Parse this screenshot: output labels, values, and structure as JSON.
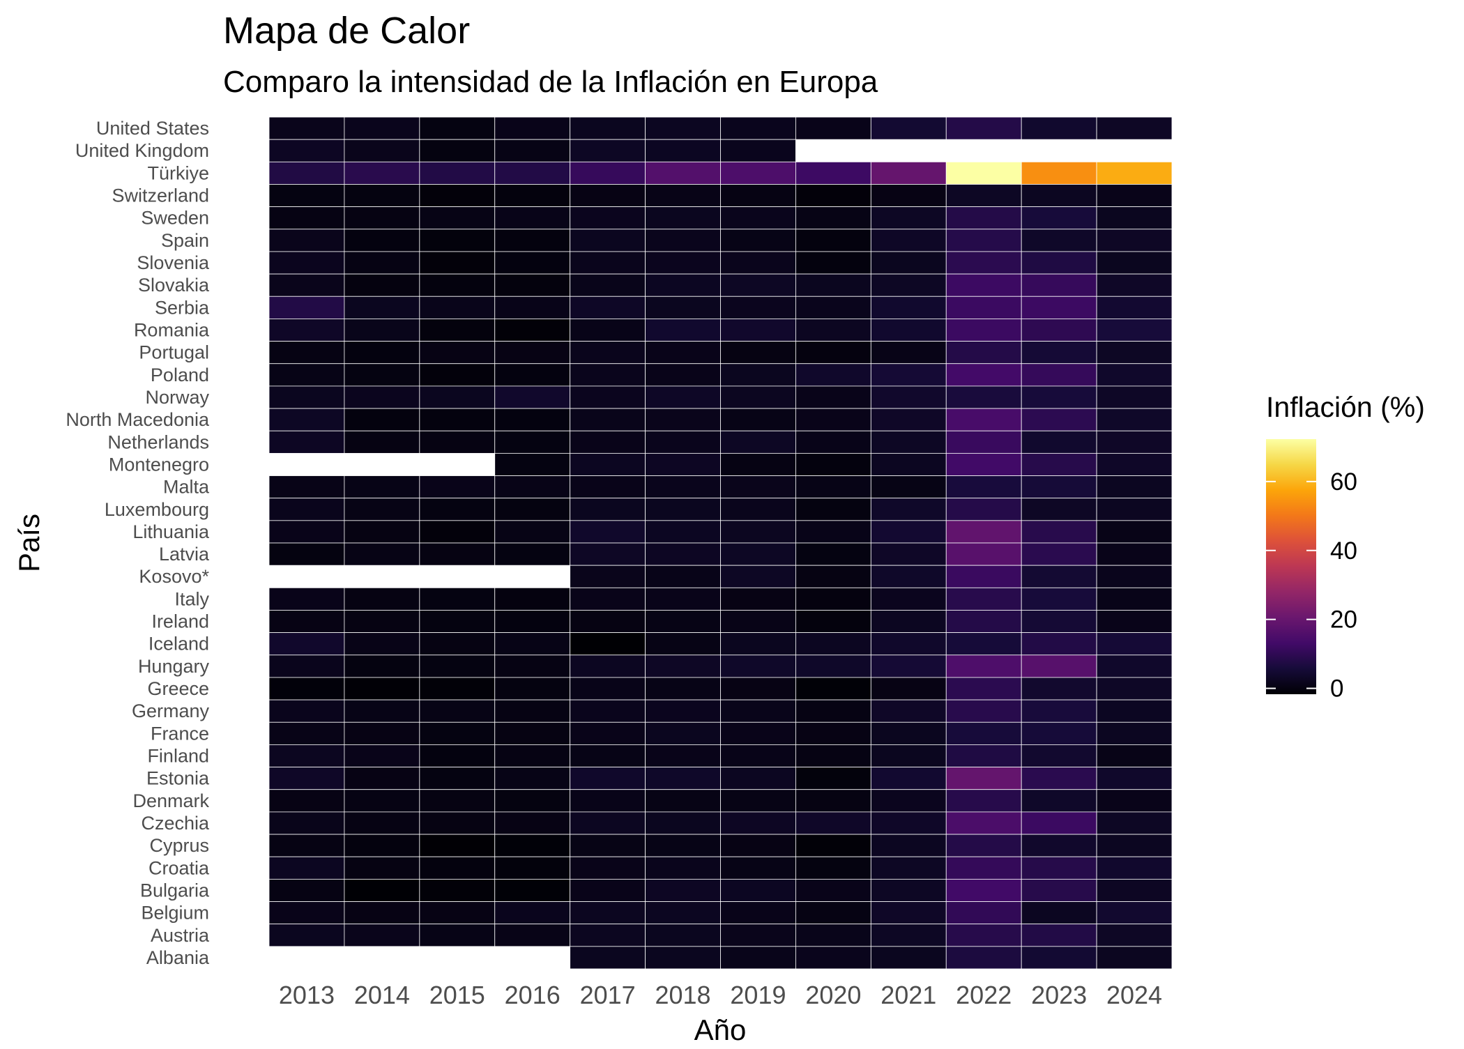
{
  "chart_data": {
    "type": "heatmap",
    "title": "Mapa de Calor",
    "subtitle": "Comparo la intensidad de la Inflación en Europa",
    "xlabel": "Año",
    "ylabel": "País",
    "legend": {
      "title": "Inflación (%)",
      "ticks": [
        0,
        20,
        40,
        60
      ],
      "placement": "right",
      "colormap": "inferno",
      "range": [
        -1.7,
        72.3
      ]
    },
    "x": [
      "2013",
      "2014",
      "2015",
      "2016",
      "2017",
      "2018",
      "2019",
      "2020",
      "2021",
      "2022",
      "2023",
      "2024"
    ],
    "y": [
      "United States",
      "United Kingdom",
      "Türkiye",
      "Switzerland",
      "Sweden",
      "Spain",
      "Slovenia",
      "Slovakia",
      "Serbia",
      "Romania",
      "Portugal",
      "Poland",
      "Norway",
      "North Macedonia",
      "Netherlands",
      "Montenegro",
      "Malta",
      "Luxembourg",
      "Lithuania",
      "Latvia",
      "Kosovo*",
      "Italy",
      "Ireland",
      "Iceland",
      "Hungary",
      "Greece",
      "Germany",
      "France",
      "Finland",
      "Estonia",
      "Denmark",
      "Czechia",
      "Cyprus",
      "Croatia",
      "Bulgaria",
      "Belgium",
      "Austria",
      "Albania"
    ],
    "values": [
      [
        1.5,
        1.6,
        0.1,
        1.3,
        2.1,
        2.4,
        1.8,
        1.2,
        4.7,
        8.0,
        4.1,
        2.9
      ],
      [
        2.6,
        1.5,
        0.0,
        0.7,
        2.7,
        2.5,
        1.8,
        null,
        null,
        null,
        null,
        null
      ],
      [
        7.5,
        8.9,
        7.7,
        7.8,
        11.1,
        16.3,
        15.2,
        12.3,
        19.6,
        72.3,
        53.9,
        58.5
      ],
      [
        0.1,
        0.0,
        -0.8,
        -0.5,
        0.6,
        0.9,
        0.4,
        -0.8,
        0.5,
        2.7,
        2.3,
        1.2
      ],
      [
        0.4,
        0.2,
        0.7,
        1.1,
        1.9,
        2.0,
        1.7,
        0.7,
        2.7,
        8.1,
        5.9,
        2.0
      ],
      [
        1.5,
        -0.2,
        -0.6,
        -0.3,
        2.0,
        1.7,
        0.8,
        -0.3,
        3.0,
        8.3,
        3.4,
        2.9
      ],
      [
        1.9,
        0.4,
        -0.8,
        -0.2,
        1.6,
        1.9,
        1.7,
        -0.3,
        2.0,
        9.3,
        7.2,
        2.0
      ],
      [
        1.5,
        -0.1,
        -0.3,
        -0.5,
        1.4,
        2.5,
        2.8,
        2.0,
        2.8,
        12.1,
        11.0,
        3.2
      ],
      [
        7.7,
        2.1,
        1.4,
        1.1,
        3.1,
        2.0,
        1.9,
        1.6,
        4.1,
        12.0,
        12.1,
        4.6
      ],
      [
        3.2,
        1.4,
        -0.4,
        -1.1,
        1.1,
        4.1,
        3.9,
        2.3,
        4.1,
        12.0,
        9.7,
        5.8
      ],
      [
        0.4,
        -0.2,
        0.5,
        0.6,
        1.6,
        1.2,
        0.3,
        -0.1,
        0.9,
        8.1,
        5.3,
        2.7
      ],
      [
        0.8,
        0.1,
        -0.7,
        -0.2,
        1.6,
        1.2,
        2.1,
        3.7,
        5.2,
        13.2,
        10.9,
        3.7
      ],
      [
        2.0,
        1.9,
        2.0,
        3.9,
        1.9,
        3.0,
        2.2,
        1.2,
        3.9,
        6.2,
        5.8,
        3.1
      ],
      [
        2.8,
        -0.3,
        -0.3,
        -0.2,
        1.4,
        1.5,
        0.8,
        1.2,
        3.2,
        14.2,
        9.4,
        3.5
      ],
      [
        2.6,
        0.3,
        0.2,
        0.1,
        1.3,
        1.6,
        2.7,
        1.1,
        2.8,
        11.6,
        4.1,
        3.2
      ],
      [
        null,
        null,
        null,
        0.1,
        2.4,
        2.6,
        0.4,
        -0.3,
        2.4,
        13.0,
        8.6,
        3.3
      ],
      [
        1.0,
        0.8,
        1.2,
        0.9,
        1.3,
        1.7,
        1.5,
        0.8,
        0.7,
        6.1,
        5.6,
        2.4
      ],
      [
        1.7,
        0.7,
        0.1,
        0.0,
        2.1,
        2.0,
        1.6,
        0.0,
        3.5,
        8.2,
        2.9,
        2.3
      ],
      [
        1.2,
        0.2,
        -0.7,
        0.7,
        3.7,
        2.5,
        2.2,
        1.1,
        4.6,
        18.9,
        8.7,
        0.9
      ],
      [
        0.0,
        0.7,
        0.2,
        0.1,
        2.9,
        2.6,
        2.7,
        0.1,
        3.2,
        17.2,
        9.1,
        1.3
      ],
      [
        null,
        null,
        null,
        null,
        1.5,
        1.1,
        2.7,
        0.2,
        3.4,
        11.7,
        4.9,
        1.6
      ],
      [
        1.3,
        0.2,
        0.1,
        -0.1,
        1.3,
        1.2,
        0.6,
        -0.1,
        1.9,
        8.7,
        5.9,
        1.1
      ],
      [
        0.5,
        0.3,
        0.0,
        -0.2,
        0.3,
        0.7,
        0.9,
        -0.5,
        2.4,
        8.1,
        5.2,
        1.3
      ],
      [
        3.9,
        1.0,
        0.3,
        0.8,
        -1.7,
        0.7,
        2.0,
        2.4,
        3.7,
        5.7,
        7.8,
        5.3
      ],
      [
        1.7,
        0.0,
        0.1,
        0.4,
        2.4,
        2.9,
        3.4,
        3.4,
        5.2,
        15.3,
        17.0,
        3.7
      ],
      [
        -0.9,
        -1.4,
        -1.1,
        0.0,
        1.1,
        0.8,
        0.5,
        -1.3,
        0.6,
        9.3,
        4.2,
        3.0
      ],
      [
        1.6,
        0.8,
        0.7,
        0.4,
        1.7,
        1.9,
        1.4,
        0.4,
        3.2,
        8.7,
        6.0,
        2.5
      ],
      [
        1.0,
        0.6,
        0.1,
        0.3,
        1.2,
        2.1,
        1.3,
        0.5,
        2.1,
        5.9,
        5.7,
        2.3
      ],
      [
        2.2,
        1.2,
        -0.2,
        0.4,
        0.8,
        1.2,
        1.1,
        0.4,
        2.1,
        7.2,
        4.3,
        1.0
      ],
      [
        3.2,
        0.5,
        0.1,
        0.8,
        3.7,
        3.4,
        2.3,
        -0.6,
        4.5,
        19.4,
        9.1,
        3.7
      ],
      [
        0.5,
        0.4,
        0.2,
        0.0,
        1.1,
        0.7,
        0.7,
        0.3,
        1.9,
        8.5,
        3.4,
        1.3
      ],
      [
        1.4,
        0.4,
        0.3,
        0.6,
        2.4,
        2.0,
        2.6,
        3.3,
        3.3,
        14.8,
        12.0,
        2.7
      ],
      [
        0.4,
        -0.3,
        -1.5,
        -1.2,
        0.7,
        0.8,
        0.5,
        -1.1,
        2.3,
        8.1,
        3.9,
        2.3
      ],
      [
        2.3,
        0.2,
        -0.3,
        -0.6,
        1.3,
        1.6,
        0.8,
        0.0,
        2.7,
        10.7,
        8.4,
        4.0
      ],
      [
        0.4,
        -1.6,
        -1.1,
        -1.3,
        1.2,
        2.6,
        2.5,
        1.2,
        2.8,
        13.0,
        8.6,
        2.6
      ],
      [
        1.2,
        0.5,
        0.6,
        1.8,
        2.2,
        2.3,
        1.2,
        0.4,
        3.2,
        10.3,
        2.3,
        4.3
      ],
      [
        2.1,
        1.5,
        0.8,
        1.0,
        2.2,
        2.1,
        1.5,
        1.4,
        2.8,
        8.6,
        7.7,
        2.9
      ],
      [
        null,
        null,
        null,
        null,
        2.0,
        2.0,
        1.4,
        1.6,
        2.0,
        6.7,
        4.8,
        2.2
      ]
    ]
  }
}
